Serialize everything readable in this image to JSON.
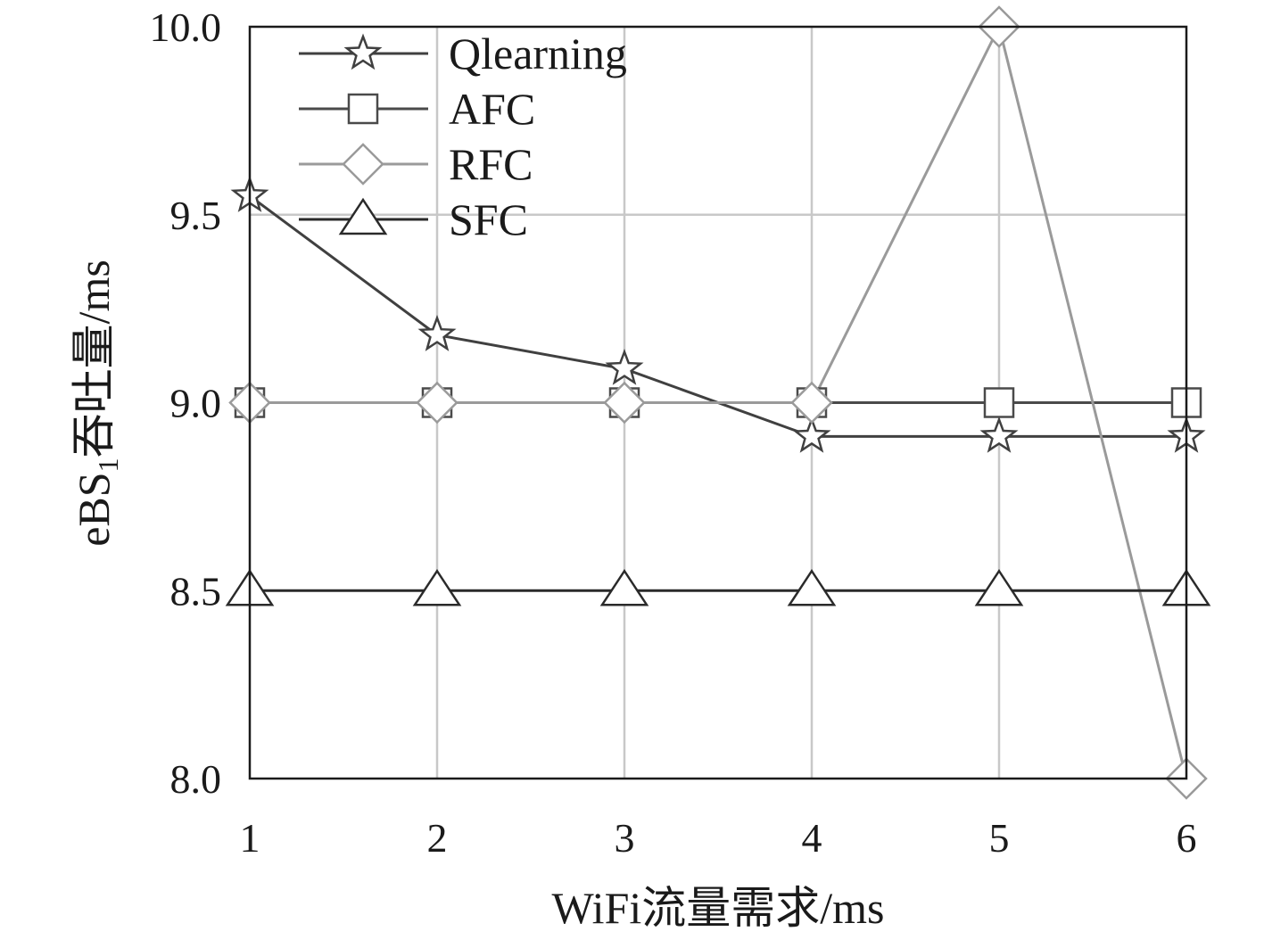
{
  "chart_data": {
    "type": "line",
    "xlabel": "WiFi流量需求/ms",
    "ylabel_parts": {
      "pre": "eBS",
      "sub": "1",
      "post": "吞吐量/ms"
    },
    "x": [
      1,
      2,
      3,
      4,
      5,
      6
    ],
    "xlim": [
      1,
      6
    ],
    "ylim": [
      8.0,
      10.0
    ],
    "x_ticks": [
      "1",
      "2",
      "3",
      "4",
      "5",
      "6"
    ],
    "y_ticks": [
      {
        "value": 8.0,
        "label": "8.0"
      },
      {
        "value": 8.5,
        "label": "8.5"
      },
      {
        "value": 9.0,
        "label": "9.0"
      },
      {
        "value": 9.5,
        "label": "9.5"
      },
      {
        "value": 10.0,
        "label": "10.0"
      }
    ],
    "grid": true,
    "legend_position": "top-left",
    "series": [
      {
        "name": "Qlearning",
        "marker": "star",
        "color": "#404040",
        "values": [
          9.55,
          9.18,
          9.09,
          8.91,
          8.91,
          8.91
        ]
      },
      {
        "name": "AFC",
        "marker": "square",
        "color": "#4a4a4a",
        "values": [
          9.0,
          9.0,
          9.0,
          9.0,
          9.0,
          9.0
        ]
      },
      {
        "name": "RFC",
        "marker": "diamond",
        "color": "#9a9a9a",
        "values": [
          9.0,
          9.0,
          9.0,
          9.0,
          10.0,
          8.0
        ]
      },
      {
        "name": "SFC",
        "marker": "triangle",
        "color": "#2a2a2a",
        "values": [
          8.5,
          8.5,
          8.5,
          8.5,
          8.5,
          8.5
        ]
      }
    ]
  }
}
